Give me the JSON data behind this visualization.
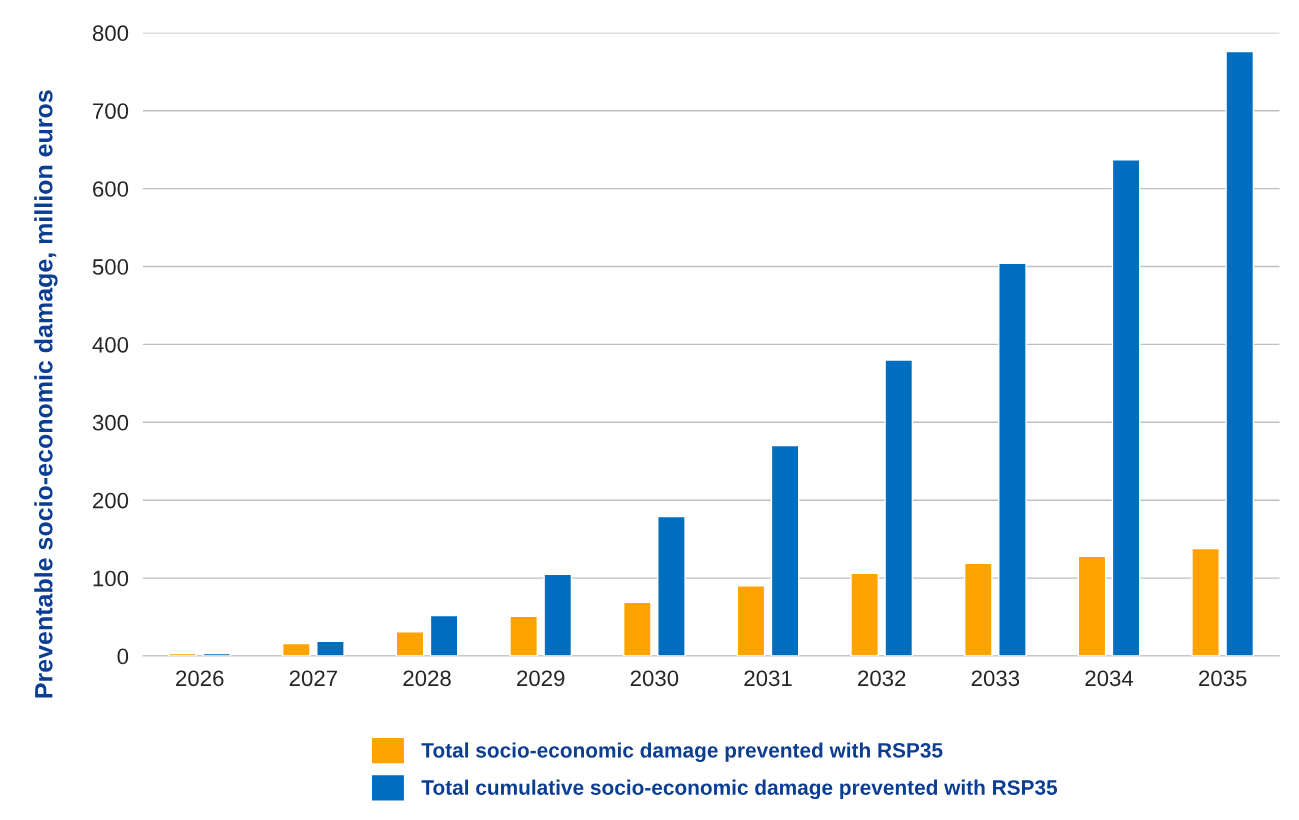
{
  "chart_data": {
    "type": "bar",
    "ylabel": "Preventable socio-economic damage, million euros",
    "categories": [
      "2026",
      "2027",
      "2028",
      "2029",
      "2030",
      "2031",
      "2032",
      "2033",
      "2034",
      "2035"
    ],
    "series": [
      {
        "name": "Total socio-economic damage prevented with RSP35",
        "color": "#ffa300",
        "values": [
          3,
          16,
          31,
          51,
          69,
          90,
          106,
          119,
          128,
          138
        ]
      },
      {
        "name": "Total cumulative socio-economic damage prevented with RSP35",
        "color": "#006ebf",
        "values": [
          3,
          19,
          52,
          105,
          179,
          270,
          380,
          504,
          637,
          776
        ]
      }
    ],
    "ylim": [
      0,
      800
    ],
    "yticks": [
      0,
      100,
      200,
      300,
      400,
      500,
      600,
      700,
      800
    ],
    "grid": "y",
    "legend": "bottom"
  }
}
